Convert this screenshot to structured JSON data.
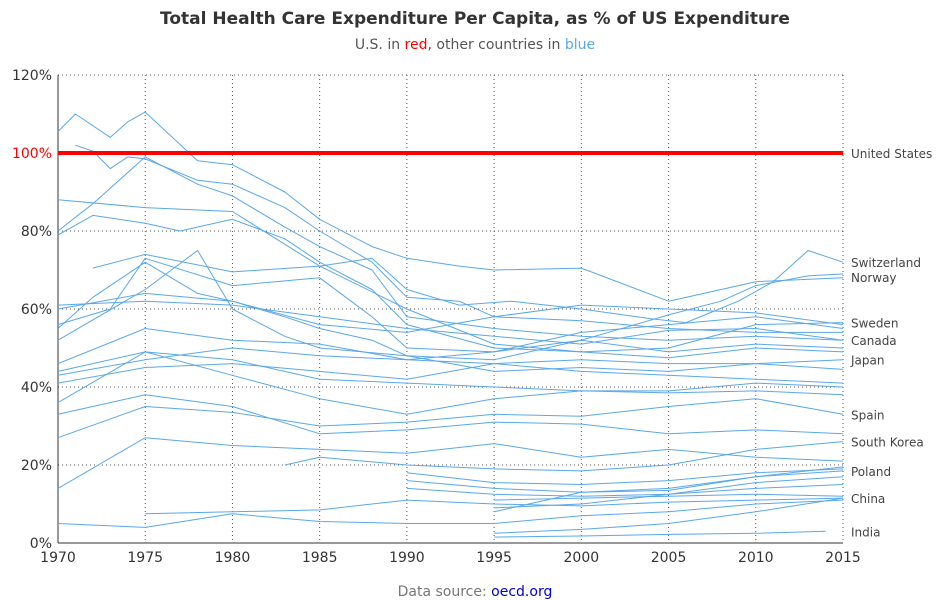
{
  "chart_data": {
    "type": "line",
    "title": "Total Health Care Expenditure Per Capita, as % of US Expenditure",
    "subtitle": {
      "prefix": "U.S. in ",
      "red_word": "red",
      "middle": ", other countries in ",
      "blue_word": "blue"
    },
    "source": {
      "label": "Data source: ",
      "link": "oecd.org"
    },
    "xlim": [
      1970,
      2015
    ],
    "ylim": [
      0,
      120
    ],
    "x_ticks": [
      "1970",
      "1975",
      "1980",
      "1985",
      "1990",
      "1995",
      "2000",
      "2005",
      "2010",
      "2015"
    ],
    "y_ticks": [
      "0%",
      "20%",
      "40%",
      "60%",
      "80%",
      "100%",
      "120%"
    ],
    "grid": "dotted",
    "colors": {
      "us": "#ff0000",
      "other": "#5aa8ea",
      "title": "#333333",
      "link": "#0000cc",
      "source": "#777777"
    },
    "us_series": {
      "name": "United States",
      "x": [
        1970,
        2015
      ],
      "values": [
        100,
        100
      ]
    },
    "labeled_series": [
      {
        "name": "Switzerland",
        "x": [
          1972,
          1975,
          1980,
          1985,
          1988,
          1990,
          1993,
          1996,
          2000,
          2004,
          2006,
          2009,
          2011,
          2013,
          2015
        ],
        "values": [
          70.5,
          74,
          69.5,
          71,
          73,
          65,
          61,
          62,
          60,
          57.5,
          56.5,
          62,
          67,
          75,
          72
        ]
      },
      {
        "name": "Norway",
        "x": [
          1970,
          1973,
          1975,
          1980,
          1985,
          1988,
          1990,
          1995,
          2000,
          2005,
          2008,
          2010,
          2013,
          2015
        ],
        "values": [
          56,
          60,
          73,
          66,
          68,
          58,
          50,
          49,
          52,
          58.5,
          62,
          66,
          68.5,
          69
        ]
      },
      {
        "name": "Sweden",
        "x": [
          1970,
          1975,
          1980,
          1985,
          1990,
          1995,
          2000,
          2005,
          2010,
          2015
        ],
        "values": [
          88,
          86,
          85,
          71,
          60,
          51,
          49,
          50,
          56,
          56.5
        ]
      },
      {
        "name": "Canada",
        "x": [
          1970,
          1975,
          1980,
          1985,
          1990,
          1995,
          2000,
          2005,
          2010,
          2015
        ],
        "values": [
          61,
          62,
          61,
          58,
          55,
          53,
          51,
          54.5,
          55,
          52
        ]
      },
      {
        "name": "Japan",
        "x": [
          1970,
          1975,
          1980,
          1985,
          1990,
          1995,
          2000,
          2005,
          2010,
          2015
        ],
        "values": [
          41,
          45,
          46,
          44,
          42,
          46,
          47,
          46,
          46,
          47
        ]
      },
      {
        "name": "Spain",
        "x": [
          1970,
          1975,
          1980,
          1985,
          1990,
          1995,
          2000,
          2005,
          2010,
          2015
        ],
        "values": [
          27,
          35,
          33.5,
          30,
          31,
          33,
          32.5,
          35,
          37,
          33
        ]
      },
      {
        "name": "South Korea",
        "x": [
          1983,
          1985,
          1990,
          1995,
          2000,
          2005,
          2010,
          2015
        ],
        "values": [
          20,
          22,
          20,
          19,
          18.5,
          20,
          24,
          26
        ]
      },
      {
        "name": "Poland",
        "x": [
          1990,
          1995,
          2000,
          2005,
          2010,
          2015
        ],
        "values": [
          16,
          14,
          13,
          13.5,
          17,
          18.5
        ]
      },
      {
        "name": "China",
        "x": [
          1995,
          2000,
          2005,
          2010,
          2015
        ],
        "values": [
          2.5,
          3.5,
          5,
          8,
          11.5
        ]
      },
      {
        "name": "India",
        "x": [
          1995,
          2000,
          2005,
          2010,
          2014
        ],
        "values": [
          1.5,
          1.8,
          2.2,
          2.5,
          3
        ]
      }
    ],
    "unlabeled_series": [
      {
        "x": [
          1970,
          1971,
          1973,
          1974,
          1975,
          1978,
          1980,
          1983,
          1985,
          1988,
          1990,
          1993,
          1995,
          2000,
          2005,
          2010,
          2015
        ],
        "values": [
          105.5,
          110,
          104,
          108,
          110.5,
          98,
          97,
          90,
          83,
          76,
          73,
          71,
          70,
          70.5,
          62,
          67,
          68
        ]
      },
      {
        "x": [
          1971,
          1972,
          1973,
          1974,
          1975,
          1978,
          1980,
          1983,
          1985,
          1988,
          1990,
          1993,
          1995,
          2000,
          2005,
          2010,
          2015
        ],
        "values": [
          102,
          100.5,
          96,
          99,
          98.5,
          93,
          92,
          86,
          80,
          72,
          63,
          62,
          58,
          57,
          55,
          54,
          54
        ]
      },
      {
        "x": [
          1970,
          1972,
          1975,
          1978,
          1980,
          1983,
          1985,
          1988,
          1990,
          1995,
          2000,
          2005,
          2010,
          2015
        ],
        "values": [
          80,
          87,
          99,
          92,
          89,
          81,
          76,
          70,
          58,
          55,
          53,
          52,
          53,
          52
        ]
      },
      {
        "x": [
          1970,
          1972,
          1975,
          1977,
          1980,
          1983,
          1985,
          1988,
          1990,
          1995,
          2000,
          2005,
          2010,
          2015
        ],
        "values": [
          79,
          84,
          82,
          80,
          83,
          78,
          72,
          65,
          56,
          50,
          49,
          47.5,
          50,
          49
        ]
      },
      {
        "x": [
          1970,
          1972,
          1975,
          1978,
          1980,
          1983,
          1985,
          1988,
          1990,
          1995,
          2000,
          2005,
          2010,
          2015
        ],
        "values": [
          55,
          63,
          72,
          64,
          62,
          58,
          55,
          52,
          48,
          44,
          45,
          44,
          46,
          44.5
        ]
      },
      {
        "x": [
          1970,
          1975,
          1978,
          1980,
          1983,
          1985,
          1990,
          1995,
          2000,
          2005,
          2010,
          2015
        ],
        "values": [
          52,
          65,
          75,
          60,
          53,
          50,
          48,
          47,
          52,
          49,
          51,
          50
        ]
      },
      {
        "x": [
          1970,
          1975,
          1980,
          1985,
          1990,
          1995,
          2000,
          2005,
          2010,
          2015
        ],
        "values": [
          46,
          55,
          52,
          51,
          47,
          46,
          44,
          43,
          42,
          41
        ]
      },
      {
        "x": [
          1970,
          1975,
          1980,
          1985,
          1990,
          1995,
          2000,
          2005,
          2010,
          2015
        ],
        "values": [
          36,
          49,
          43,
          37,
          33,
          37,
          39,
          38.5,
          39,
          38
        ]
      },
      {
        "x": [
          1970,
          1975,
          1980,
          1985,
          1990,
          1995,
          2000,
          2005,
          2010,
          2015
        ],
        "values": [
          33,
          38,
          35,
          28,
          29,
          31,
          30.5,
          28,
          29,
          28
        ]
      },
      {
        "x": [
          1970,
          1975,
          1980,
          1985,
          1990,
          1995,
          2000,
          2005,
          2010,
          2015
        ],
        "values": [
          14,
          27,
          25,
          24,
          23,
          25.5,
          22,
          24,
          22,
          21
        ]
      },
      {
        "x": [
          1970,
          1975,
          1980,
          1985,
          1990,
          1995,
          2000,
          2005,
          2010,
          2015
        ],
        "values": [
          5,
          4,
          7.5,
          5.5,
          5,
          5,
          7,
          8,
          10,
          11
        ]
      },
      {
        "x": [
          1975,
          1980,
          1985,
          1990,
          1995,
          2000,
          2005,
          2010,
          2015
        ],
        "values": [
          7.5,
          8,
          8.5,
          11,
          10,
          9.5,
          10.5,
          11,
          11.5
        ]
      },
      {
        "x": [
          1990,
          1995,
          2000,
          2005,
          2010,
          2015
        ],
        "values": [
          18,
          15.5,
          15,
          16,
          18,
          19
        ]
      },
      {
        "x": [
          1990,
          1995,
          2000,
          2005,
          2010,
          2015
        ],
        "values": [
          14,
          12.5,
          12,
          12.5,
          14,
          15
        ]
      },
      {
        "x": [
          1995,
          2000,
          2005,
          2010,
          2015
        ],
        "values": [
          9,
          10,
          12.5,
          15.5,
          17
        ]
      },
      {
        "x": [
          1995,
          2000,
          2005,
          2010,
          2015
        ],
        "values": [
          11,
          11.5,
          12,
          12.5,
          12
        ]
      },
      {
        "x": [
          1995,
          2000,
          2005,
          2010,
          2015
        ],
        "values": [
          8,
          13,
          14,
          17,
          19.5
        ]
      },
      {
        "x": [
          1970,
          1975,
          1980,
          1985,
          1990,
          1995,
          2000,
          2005,
          2010,
          2015
        ],
        "values": [
          60,
          64,
          62,
          56,
          54,
          58,
          61,
          60,
          59,
          56
        ]
      },
      {
        "x": [
          1970,
          1975,
          1980,
          1985,
          1990,
          1995,
          2000,
          2005,
          2010,
          2015
        ],
        "values": [
          43,
          47,
          50,
          48,
          47,
          49,
          54,
          56,
          58,
          55
        ]
      },
      {
        "x": [
          1970,
          1975,
          1980,
          1985,
          1990,
          1995,
          2000,
          2005,
          2010,
          2015
        ],
        "values": [
          44,
          49,
          47,
          42,
          41,
          40,
          39,
          39,
          41,
          40
        ]
      }
    ]
  }
}
